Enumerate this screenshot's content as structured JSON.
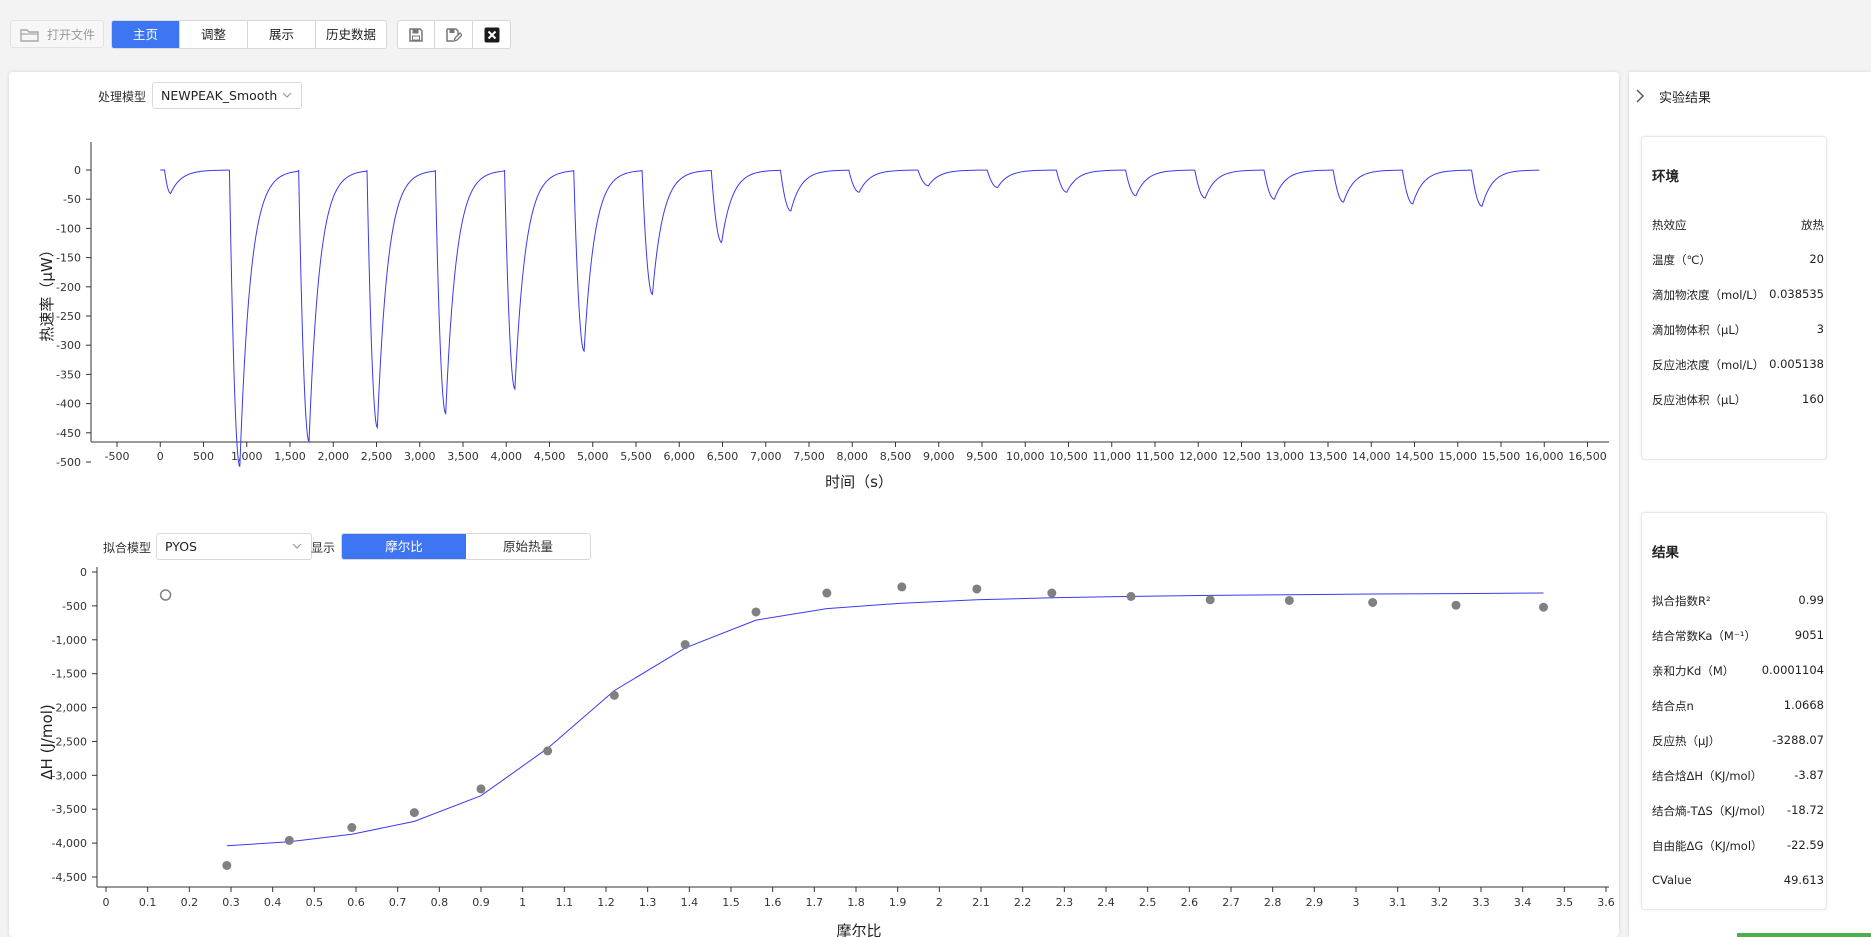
{
  "toolbar": {
    "open_file_label": "打开文件",
    "tabs": [
      {
        "label": "主页",
        "active": true
      },
      {
        "label": "调整",
        "active": false
      },
      {
        "label": "展示",
        "active": false
      },
      {
        "label": "历史数据",
        "active": false
      }
    ],
    "icons": [
      "save-icon",
      "save-edit-icon",
      "close-icon"
    ],
    "accent_color": "#3d75f2"
  },
  "upper_panel": {
    "model_label": "处理模型",
    "model_value": "NEWPEAK_Smooth"
  },
  "lower_panel": {
    "fit_model_label": "拟合模型",
    "fit_model_value": "PYOS",
    "display_label": "显示",
    "display_options": [
      {
        "label": "摩尔比",
        "active": true
      },
      {
        "label": "原始热量",
        "active": false
      }
    ]
  },
  "chart_data": [
    {
      "type": "line",
      "xlabel": "时间（s）",
      "ylabel": "热速率（μW）",
      "xlim": [
        -500,
        16500
      ],
      "ylim": [
        -500,
        0
      ],
      "x_ticks": [
        -500,
        0,
        500,
        1000,
        1500,
        2000,
        2500,
        3000,
        3500,
        4000,
        4500,
        5000,
        5500,
        6000,
        6500,
        7000,
        7500,
        8000,
        8500,
        9000,
        9500,
        10000,
        10500,
        11000,
        11500,
        12000,
        12500,
        13000,
        13500,
        14000,
        14500,
        15000,
        15500,
        16000,
        16500
      ],
      "x_tick_labels": [
        "-500",
        "0",
        "500",
        "1,000",
        "1,500",
        "2,000",
        "2,500",
        "3,000",
        "3,500",
        "4,000",
        "4,500",
        "5,000",
        "5,500",
        "6,000",
        "6,500",
        "7,000",
        "7,500",
        "8,000",
        "8,500",
        "9,000",
        "9,500",
        "10,000",
        "10,500",
        "11,000",
        "11,500",
        "12,000",
        "12,500",
        "13,000",
        "13,500",
        "14,000",
        "14,500",
        "15,000",
        "15,500",
        "16,000",
        "16,500"
      ],
      "y_ticks": [
        0,
        -50,
        -100,
        -150,
        -200,
        -250,
        -300,
        -350,
        -400,
        -450,
        -500
      ],
      "y_tick_labels": [
        "0",
        "-50",
        "-100",
        "-150",
        "-200",
        "-250",
        "-300",
        "-350",
        "-400",
        "-450",
        "-500"
      ],
      "series_color": "#3a3af0",
      "grid": false,
      "peaks": [
        {
          "start": 50,
          "min_time": 120,
          "depth": -40
        },
        {
          "start": 800,
          "min_time": 920,
          "depth": -508
        },
        {
          "start": 1600,
          "min_time": 1720,
          "depth": -465
        },
        {
          "start": 2390,
          "min_time": 2510,
          "depth": -441
        },
        {
          "start": 3180,
          "min_time": 3300,
          "depth": -417
        },
        {
          "start": 3980,
          "min_time": 4100,
          "depth": -375
        },
        {
          "start": 4780,
          "min_time": 4900,
          "depth": -310
        },
        {
          "start": 5570,
          "min_time": 5690,
          "depth": -213
        },
        {
          "start": 6370,
          "min_time": 6490,
          "depth": -124
        },
        {
          "start": 7170,
          "min_time": 7290,
          "depth": -70
        },
        {
          "start": 7960,
          "min_time": 8080,
          "depth": -38
        },
        {
          "start": 8760,
          "min_time": 8880,
          "depth": -27
        },
        {
          "start": 9560,
          "min_time": 9680,
          "depth": -30
        },
        {
          "start": 10360,
          "min_time": 10480,
          "depth": -38
        },
        {
          "start": 11160,
          "min_time": 11280,
          "depth": -44
        },
        {
          "start": 11960,
          "min_time": 12080,
          "depth": -48
        },
        {
          "start": 12760,
          "min_time": 12880,
          "depth": -50
        },
        {
          "start": 13560,
          "min_time": 13680,
          "depth": -55
        },
        {
          "start": 14360,
          "min_time": 14480,
          "depth": -58
        },
        {
          "start": 15160,
          "min_time": 15280,
          "depth": -62
        }
      ],
      "baseline_end": 15940
    },
    {
      "type": "scatter",
      "xlabel": "摩尔比",
      "ylabel": "ΔH (J/mol)",
      "xlim": [
        0,
        3.6
      ],
      "ylim": [
        -4500,
        0
      ],
      "x_ticks": [
        0,
        0.1,
        0.2,
        0.3,
        0.4,
        0.5,
        0.6,
        0.7,
        0.8,
        0.9,
        1,
        1.1,
        1.2,
        1.3,
        1.4,
        1.5,
        1.6,
        1.7,
        1.8,
        1.9,
        2,
        2.1,
        2.2,
        2.3,
        2.4,
        2.5,
        2.6,
        2.7,
        2.8,
        2.9,
        3,
        3.1,
        3.2,
        3.3,
        3.4,
        3.5,
        3.6
      ],
      "x_tick_labels": [
        "0",
        "0.1",
        "0.2",
        "0.3",
        "0.4",
        "0.5",
        "0.6",
        "0.7",
        "0.8",
        "0.9",
        "1",
        "1.1",
        "1.2",
        "1.3",
        "1.4",
        "1.5",
        "1.6",
        "1.7",
        "1.8",
        "1.9",
        "2",
        "2.1",
        "2.2",
        "2.3",
        "2.4",
        "2.5",
        "2.6",
        "2.7",
        "2.8",
        "2.9",
        "3",
        "3.1",
        "3.2",
        "3.3",
        "3.4",
        "3.5",
        "3.6"
      ],
      "y_ticks": [
        0,
        -500,
        -1000,
        -1500,
        -2000,
        -2500,
        -3000,
        -3500,
        -4000,
        -4500
      ],
      "y_tick_labels": [
        "0",
        "-500",
        "-1,000",
        "-1,500",
        "-2,000",
        "-2,500",
        "-3,000",
        "-3,500",
        "-4,000",
        "-4,500"
      ],
      "excluded_points": [
        {
          "x": 0.143,
          "y": -340
        }
      ],
      "points": [
        {
          "x": 0.29,
          "y": -4330
        },
        {
          "x": 0.44,
          "y": -3960
        },
        {
          "x": 0.59,
          "y": -3770
        },
        {
          "x": 0.74,
          "y": -3550
        },
        {
          "x": 0.9,
          "y": -3200
        },
        {
          "x": 1.06,
          "y": -2640
        },
        {
          "x": 1.22,
          "y": -1820
        },
        {
          "x": 1.39,
          "y": -1070
        },
        {
          "x": 1.56,
          "y": -590
        },
        {
          "x": 1.73,
          "y": -310
        },
        {
          "x": 1.91,
          "y": -220
        },
        {
          "x": 2.09,
          "y": -250
        },
        {
          "x": 2.27,
          "y": -310
        },
        {
          "x": 2.46,
          "y": -360
        },
        {
          "x": 2.65,
          "y": -410
        },
        {
          "x": 2.84,
          "y": -420
        },
        {
          "x": 3.04,
          "y": -450
        },
        {
          "x": 3.24,
          "y": -490
        },
        {
          "x": 3.45,
          "y": -520
        }
      ],
      "fit_line": [
        {
          "x": 0.29,
          "y": -4040
        },
        {
          "x": 0.44,
          "y": -3980
        },
        {
          "x": 0.59,
          "y": -3870
        },
        {
          "x": 0.74,
          "y": -3680
        },
        {
          "x": 0.9,
          "y": -3300
        },
        {
          "x": 1.06,
          "y": -2600
        },
        {
          "x": 1.22,
          "y": -1750
        },
        {
          "x": 1.39,
          "y": -1120
        },
        {
          "x": 1.56,
          "y": -710
        },
        {
          "x": 1.73,
          "y": -540
        },
        {
          "x": 1.91,
          "y": -460
        },
        {
          "x": 2.09,
          "y": -410
        },
        {
          "x": 2.27,
          "y": -380
        },
        {
          "x": 2.46,
          "y": -360
        },
        {
          "x": 2.65,
          "y": -345
        },
        {
          "x": 2.84,
          "y": -335
        },
        {
          "x": 3.04,
          "y": -325
        },
        {
          "x": 3.24,
          "y": -318
        },
        {
          "x": 3.45,
          "y": -310
        }
      ],
      "point_color": "#808080",
      "line_color": "#3a3af0",
      "grid": false
    }
  ],
  "sidebar": {
    "title": "实验结果",
    "env": {
      "title": "环境",
      "rows": [
        {
          "k": "热效应",
          "v": "放热"
        },
        {
          "k": "温度（℃）",
          "v": "20"
        },
        {
          "k": "滴加物浓度（mol/L）",
          "v": "0.038535"
        },
        {
          "k": "滴加物体积（μL）",
          "v": "3"
        },
        {
          "k": "反应池浓度（mol/L）",
          "v": "0.005138"
        },
        {
          "k": "反应池体积（μL）",
          "v": "160"
        }
      ]
    },
    "result": {
      "title": "结果",
      "rows": [
        {
          "k": "拟合指数R²",
          "v": "0.99"
        },
        {
          "k": "结合常数Ka（M⁻¹）",
          "v": "9051"
        },
        {
          "k": "亲和力Kd（M）",
          "v": "0.0001104"
        },
        {
          "k": "结合点n",
          "v": "1.0668"
        },
        {
          "k": "反应热（μJ）",
          "v": "-3288.07"
        },
        {
          "k": "结合焓ΔH（KJ/mol）",
          "v": "-3.87"
        },
        {
          "k": "结合熵-TΔS（KJ/mol）",
          "v": "-18.72"
        },
        {
          "k": "自由能ΔG（KJ/mol）",
          "v": "-22.59"
        },
        {
          "k": "CValue",
          "v": "49.613"
        }
      ]
    }
  }
}
